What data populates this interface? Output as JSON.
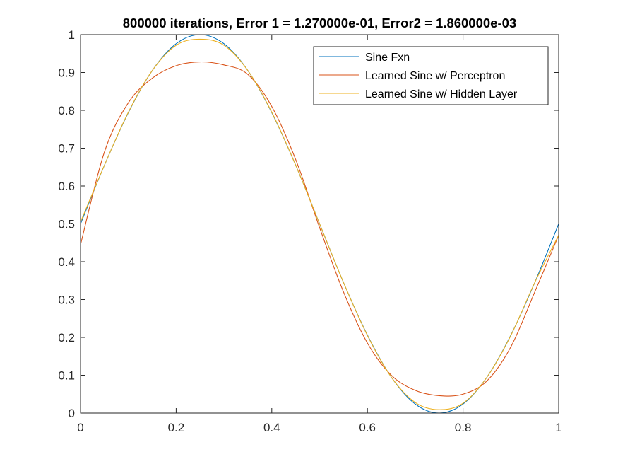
{
  "chart_data": {
    "type": "line",
    "title": "800000 iterations, Error 1 = 1.270000e-01, Error2 = 1.860000e-03",
    "xlabel": "",
    "ylabel": "",
    "xlim": [
      0,
      1
    ],
    "ylim": [
      0,
      1
    ],
    "x_ticks": [
      0,
      0.2,
      0.4,
      0.6,
      0.8,
      1
    ],
    "x_tick_labels": [
      "0",
      "0.2",
      "0.4",
      "0.6",
      "0.8",
      "1"
    ],
    "y_ticks": [
      0,
      0.1,
      0.2,
      0.3,
      0.4,
      0.5,
      0.6,
      0.7,
      0.8,
      0.9,
      1
    ],
    "y_tick_labels": [
      "0",
      "0.1",
      "0.2",
      "0.3",
      "0.4",
      "0.5",
      "0.6",
      "0.7",
      "0.8",
      "0.9",
      "1"
    ],
    "grid": false,
    "box": true,
    "legend_position": "top-right",
    "x": [
      0,
      0.05,
      0.1,
      0.15,
      0.2,
      0.25,
      0.3,
      0.35,
      0.4,
      0.45,
      0.5,
      0.55,
      0.6,
      0.65,
      0.7,
      0.75,
      0.8,
      0.85,
      0.9,
      0.95,
      1
    ],
    "series": [
      {
        "name": "Sine Fxn",
        "color": "#0072BD",
        "values": [
          0.5,
          0.655,
          0.794,
          0.905,
          0.976,
          1.0,
          0.976,
          0.905,
          0.794,
          0.655,
          0.5,
          0.345,
          0.206,
          0.095,
          0.024,
          0.0,
          0.024,
          0.095,
          0.206,
          0.345,
          0.5
        ]
      },
      {
        "name": "Learned Sine w/ Perceptron",
        "color": "#D95319",
        "values": [
          0.445,
          0.69,
          0.82,
          0.885,
          0.918,
          0.928,
          0.92,
          0.895,
          0.81,
          0.67,
          0.49,
          0.32,
          0.185,
          0.1,
          0.06,
          0.046,
          0.05,
          0.085,
          0.175,
          0.32,
          0.47
        ]
      },
      {
        "name": "Learned Sine w/ Hidden Layer",
        "color": "#EDB120",
        "values": [
          0.505,
          0.655,
          0.795,
          0.905,
          0.972,
          0.988,
          0.972,
          0.905,
          0.795,
          0.655,
          0.5,
          0.345,
          0.205,
          0.095,
          0.028,
          0.009,
          0.026,
          0.095,
          0.205,
          0.345,
          0.47
        ]
      }
    ]
  }
}
